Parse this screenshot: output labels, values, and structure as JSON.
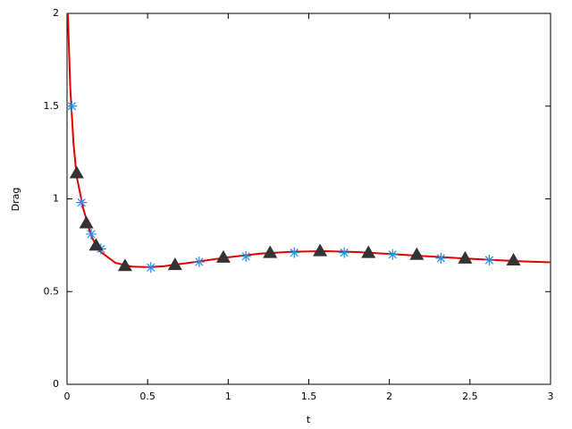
{
  "chart_data": {
    "type": "line",
    "x_label": "t",
    "y_label": "Drag",
    "xlim": [
      0,
      3
    ],
    "ylim": [
      0,
      2
    ],
    "xticks": [
      0,
      0.5,
      1,
      1.5,
      2,
      2.5,
      3
    ],
    "yticks": [
      0,
      0.5,
      1,
      1.5,
      2
    ],
    "grid": false,
    "series": [
      {
        "color": "#e00000",
        "marker": "none",
        "x": [
          0.005,
          0.02,
          0.04,
          0.06,
          0.1,
          0.15,
          0.2,
          0.3,
          0.4,
          0.5,
          0.6,
          0.8,
          1.0,
          1.2,
          1.4,
          1.6,
          1.8,
          2.0,
          2.2,
          2.4,
          2.6,
          2.8,
          3.0
        ],
        "values": [
          2.0,
          1.6,
          1.3,
          1.12,
          0.95,
          0.8,
          0.72,
          0.655,
          0.635,
          0.632,
          0.637,
          0.66,
          0.685,
          0.705,
          0.715,
          0.718,
          0.713,
          0.703,
          0.692,
          0.682,
          0.672,
          0.664,
          0.658
        ]
      },
      {
        "color": "#2a8ae6",
        "marker": "asterisk",
        "x": [
          0.03,
          0.09,
          0.15,
          0.21,
          0.52,
          0.82,
          1.11,
          1.41,
          1.72,
          2.02,
          2.32,
          2.62
        ],
        "values": [
          1.5,
          0.98,
          0.81,
          0.73,
          0.63,
          0.66,
          0.69,
          0.71,
          0.71,
          0.7,
          0.68,
          0.67
        ]
      },
      {
        "color": "#333333",
        "marker": "triangle",
        "x": [
          0.06,
          0.12,
          0.18,
          0.36,
          0.67,
          0.97,
          1.26,
          1.57,
          1.87,
          2.17,
          2.47,
          2.77
        ],
        "values": [
          1.14,
          0.87,
          0.75,
          0.64,
          0.645,
          0.685,
          0.71,
          0.72,
          0.71,
          0.7,
          0.68,
          0.67
        ]
      }
    ]
  }
}
